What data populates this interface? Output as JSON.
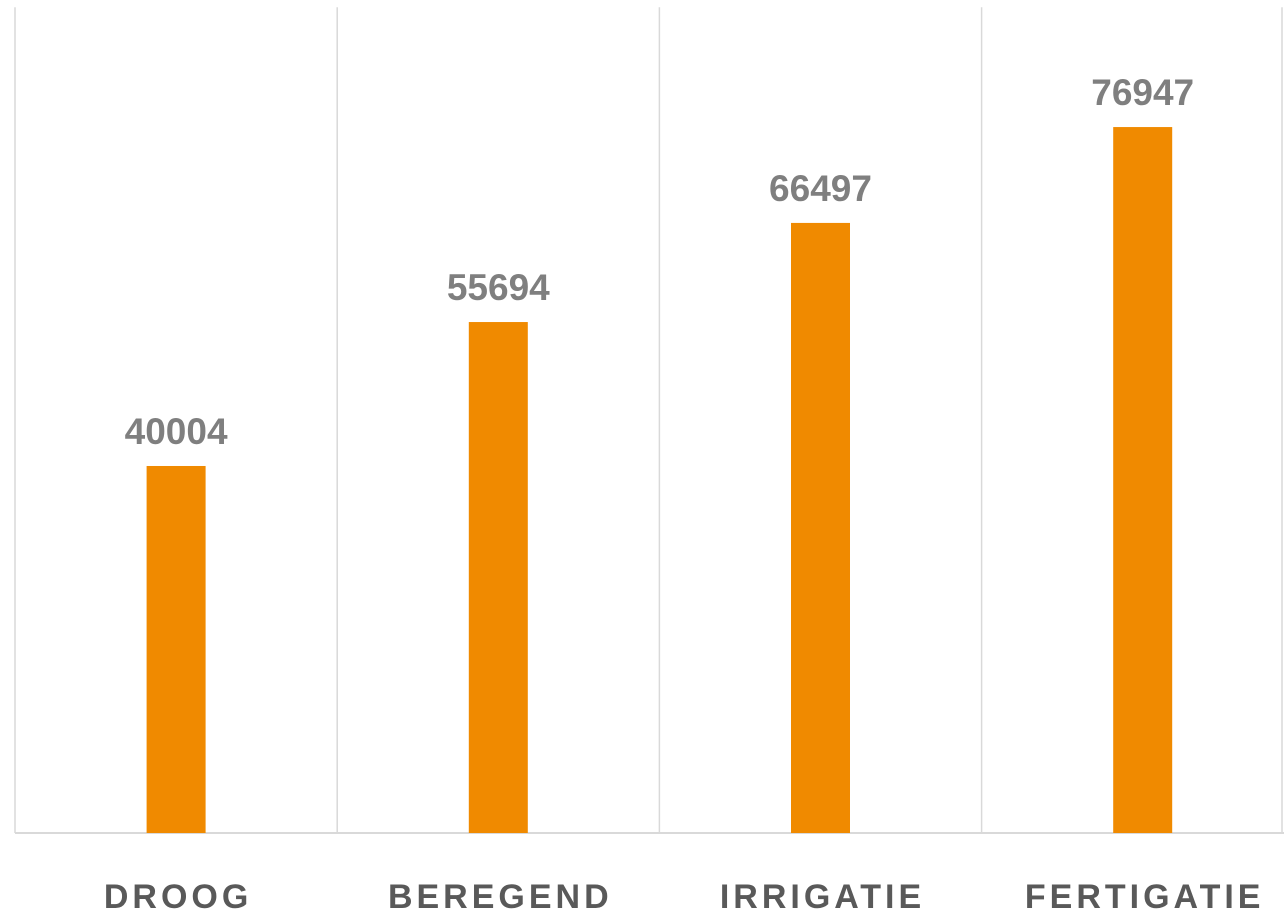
{
  "chart_data": {
    "type": "bar",
    "categories": [
      "DROOG",
      "BEREGEND",
      "IRRIGATIE",
      "FERTIGATIE"
    ],
    "values": [
      40004,
      55694,
      66497,
      76947
    ],
    "color": "#f08a00",
    "ylim": [
      0,
      90000
    ]
  }
}
